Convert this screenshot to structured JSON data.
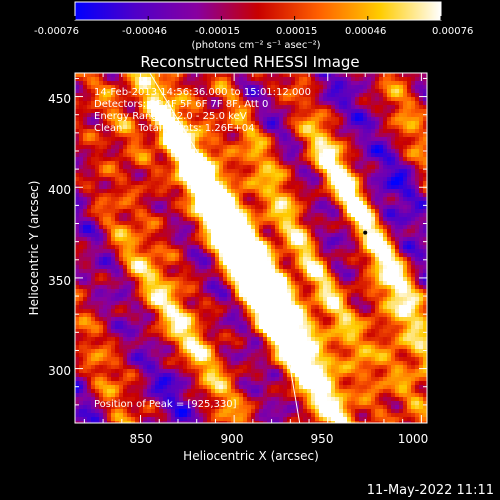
{
  "chart_data": {
    "type": "heatmap",
    "title": "Reconstructed RHESSI Image",
    "xlabel": "Heliocentric X (arcsec)",
    "ylabel": "Heliocentric Y (arcsec)",
    "xlim": [
      815,
      1003
    ],
    "ylim": [
      270,
      463
    ],
    "xticks": [
      850,
      900,
      950,
      1000
    ],
    "yticks": [
      300,
      350,
      400,
      450
    ],
    "colorbar": {
      "min": -0.00076,
      "max": 0.00076,
      "ticks": [
        "-0.00076",
        "-0.00046",
        "-0.00015",
        "0.00015",
        "0.00046",
        "0.00076"
      ],
      "units_label": "(photons cm⁻² s⁻¹ asec⁻²)",
      "colormap": [
        "#0000ff",
        "#5000c8",
        "#8800a0",
        "#c80000",
        "#ff6000",
        "#ffcc00",
        "#ffffff"
      ]
    },
    "annotations": [
      "14-Feb-2013 14:56:36.000 to 15:01:12.000",
      "Detectors: 3F 4F 5F 6F 7F 8F, Att 0",
      "Energy Range: 12.0 - 25.0 keV",
      "Clean     Total counts: 1.26E+04"
    ],
    "peak_label": "Position of Peak = [925,330]",
    "peak": [
      925,
      330
    ],
    "limb_arc": [
      [
        855,
        463
      ],
      [
        880,
        420
      ],
      [
        905,
        370
      ],
      [
        920,
        330
      ],
      [
        930,
        300
      ],
      [
        935,
        270
      ]
    ],
    "bright_bands": [
      {
        "x": 903,
        "y": 360,
        "dx": 24,
        "dy": -48,
        "half_len": 1.5,
        "half_w": 7,
        "amp": 1.25
      },
      {
        "x": 920,
        "y": 405,
        "dx": 24,
        "dy": -48,
        "half_len": 1.1,
        "half_w": 6,
        "amp": 1.0
      },
      {
        "x": 930,
        "y": 328,
        "dx": 24,
        "dy": -48,
        "half_len": 1.2,
        "half_w": 6,
        "amp": 1.05
      },
      {
        "x": 880,
        "y": 400,
        "dx": 24,
        "dy": -48,
        "half_len": 1.2,
        "half_w": 6,
        "amp": 0.85
      },
      {
        "x": 960,
        "y": 400,
        "dx": 24,
        "dy": -48,
        "half_len": 1.0,
        "half_w": 6,
        "amp": 0.8
      },
      {
        "x": 985,
        "y": 350,
        "dx": 24,
        "dy": -48,
        "half_len": 1.0,
        "half_w": 6,
        "amp": 0.75
      },
      {
        "x": 850,
        "y": 350,
        "dx": 24,
        "dy": -48,
        "half_len": 0.9,
        "half_w": 6,
        "amp": 0.7
      },
      {
        "x": 960,
        "y": 320,
        "dx": 24,
        "dy": -48,
        "half_len": 0.9,
        "half_w": 6,
        "amp": 0.75
      },
      {
        "x": 880,
        "y": 310,
        "dx": 24,
        "dy": -48,
        "half_len": 0.8,
        "half_w": 6,
        "amp": 0.7
      },
      {
        "x": 840,
        "y": 440,
        "dx": 24,
        "dy": -48,
        "half_len": 0.7,
        "half_w": 6,
        "amp": 0.6
      },
      {
        "x": 990,
        "y": 295,
        "dx": 24,
        "dy": -48,
        "half_len": 0.7,
        "half_w": 6,
        "amp": 0.75
      },
      {
        "x": 995,
        "y": 430,
        "dx": 24,
        "dy": -48,
        "half_len": 0.6,
        "half_w": 5,
        "amp": 0.55
      },
      {
        "x": 830,
        "y": 295,
        "dx": 24,
        "dy": -48,
        "half_len": 0.6,
        "half_w": 5,
        "amp": 0.5
      }
    ]
  },
  "footer": {
    "timestamp": "11-May-2022 11:11"
  }
}
